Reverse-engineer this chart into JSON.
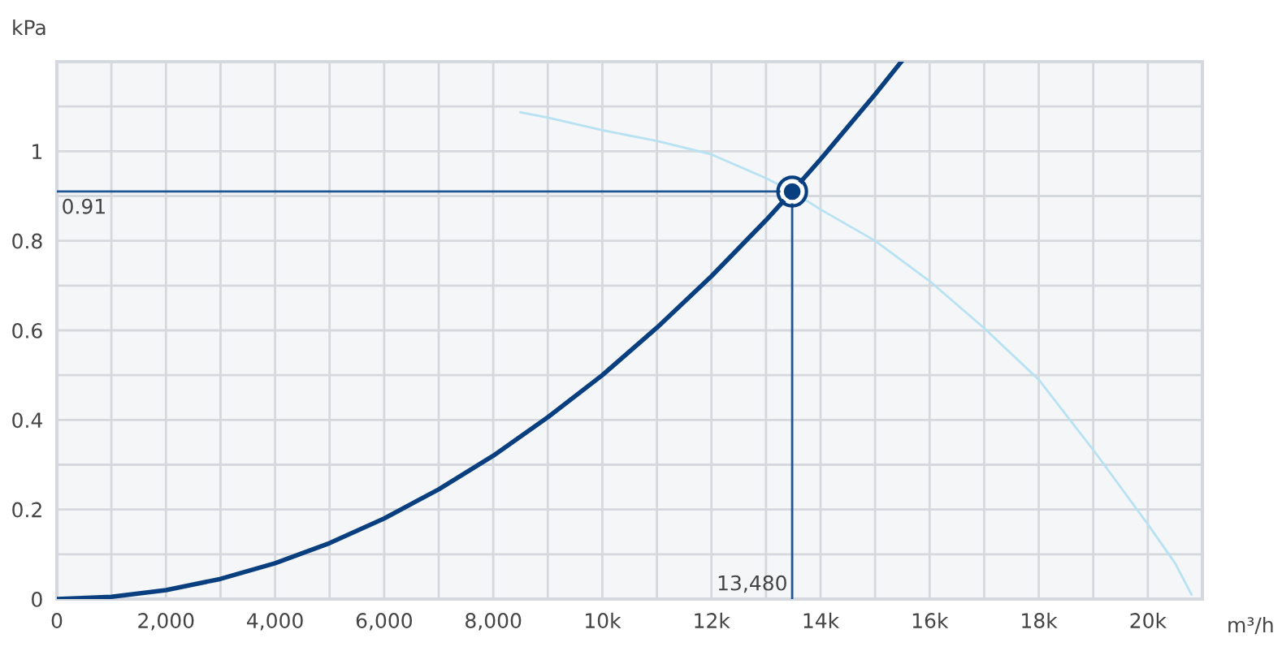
{
  "chart_data": {
    "type": "line",
    "xlabel": "m³/h",
    "ylabel": "kPa",
    "xlim": [
      0,
      21000
    ],
    "ylim": [
      0,
      1.2
    ],
    "xticks": [
      0,
      {
        "value": 1000,
        "label": null
      },
      {
        "value": 2000,
        "label": "2,000"
      },
      {
        "value": 3000,
        "label": null
      },
      {
        "value": 4000,
        "label": "4,000"
      },
      {
        "value": 5000,
        "label": null
      },
      {
        "value": 6000,
        "label": "6,000"
      },
      {
        "value": 7000,
        "label": null
      },
      {
        "value": 8000,
        "label": "8,000"
      },
      {
        "value": 9000,
        "label": null
      },
      {
        "value": 10000,
        "label": "10k"
      },
      {
        "value": 11000,
        "label": null
      },
      {
        "value": 12000,
        "label": "12k"
      },
      {
        "value": 13000,
        "label": null
      },
      {
        "value": 14000,
        "label": "14k"
      },
      {
        "value": 15000,
        "label": null
      },
      {
        "value": 16000,
        "label": "16k"
      },
      {
        "value": 17000,
        "label": null
      },
      {
        "value": 18000,
        "label": "18k"
      },
      {
        "value": 19000,
        "label": null
      },
      {
        "value": 20000,
        "label": "20k"
      }
    ],
    "yticks": [
      0,
      {
        "value": 0.1,
        "label": null
      },
      0.2,
      {
        "value": 0.3,
        "label": null
      },
      0.4,
      {
        "value": 0.5,
        "label": null
      },
      0.6,
      {
        "value": 0.7,
        "label": null
      },
      0.8,
      {
        "value": 0.9,
        "label": null
      },
      1,
      {
        "value": 1.1,
        "label": null
      }
    ],
    "grid": true,
    "marker": "none",
    "line_style": "solid",
    "series": [
      {
        "color": "#b8e2f2",
        "x": [
          8500,
          9000,
          10000,
          11000,
          12000,
          13000,
          13480,
          14000,
          15000,
          16000,
          17000,
          18000,
          19000,
          20000,
          20500,
          20800
        ],
        "values": [
          1.087,
          1.075,
          1.047,
          1.023,
          0.993,
          0.94,
          0.91,
          0.87,
          0.8,
          0.71,
          0.605,
          0.49,
          0.333,
          0.167,
          0.08,
          0.01
        ]
      },
      {
        "color": "#0a3f7f",
        "x": [
          0,
          1000,
          2000,
          3000,
          4000,
          5000,
          6000,
          7000,
          8000,
          9000,
          10000,
          11000,
          12000,
          13000,
          13480,
          14000,
          15000,
          15480
        ],
        "values": [
          0,
          0.005,
          0.02,
          0.045,
          0.08,
          0.125,
          0.18,
          0.245,
          0.32,
          0.406,
          0.5,
          0.606,
          0.721,
          0.846,
          0.91,
          0.982,
          1.127,
          1.2
        ]
      },
      {
        "type": "scatter",
        "marker": "circle",
        "color": "#0a3f7f",
        "x": [
          13480
        ],
        "values": [
          0.91
        ]
      }
    ],
    "ref_lines": [
      {
        "axis": "y",
        "value": 0.91,
        "label": "0.91",
        "color": "#1f5592"
      },
      {
        "axis": "x",
        "value": 13480,
        "label": "13,480",
        "color": "#1f5592"
      }
    ]
  }
}
